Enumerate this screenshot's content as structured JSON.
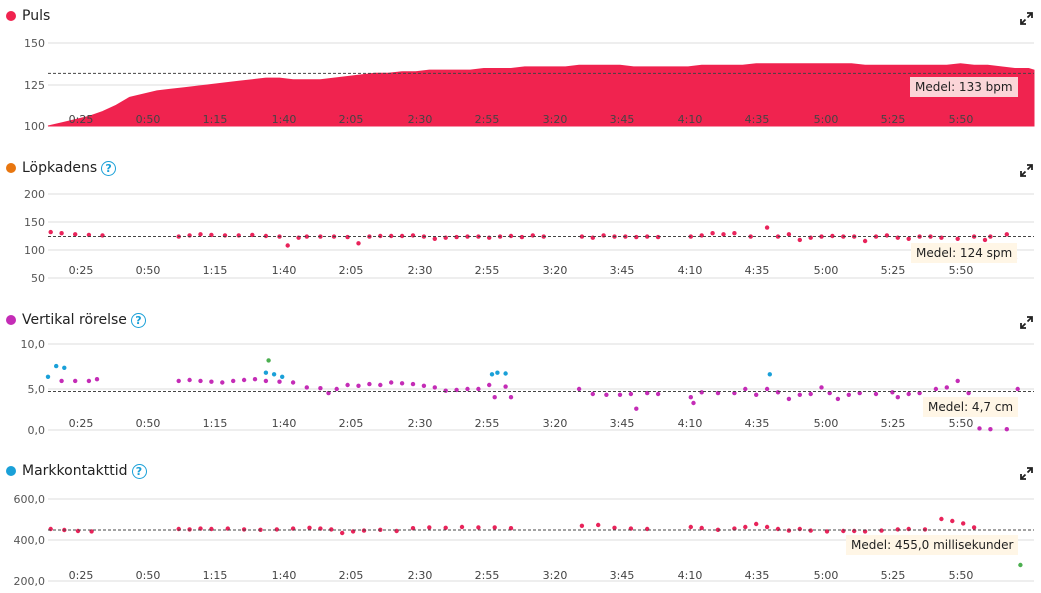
{
  "x_ticks": [
    "0:25",
    "0:50",
    "1:15",
    "1:40",
    "2:05",
    "2:30",
    "2:55",
    "3:20",
    "3:45",
    "4:10",
    "4:35",
    "5:00",
    "5:25",
    "5:50"
  ],
  "charts": {
    "puls": {
      "title": "Puls",
      "color": "#f0234f",
      "avg_label": "Medel: 133 bpm",
      "avg_value": 133,
      "y_ticks": [
        "150",
        "125",
        "100"
      ]
    },
    "kadens": {
      "title": "Löpkadens",
      "color": "#e8760f",
      "avg_label": "Medel: 124 spm",
      "avg_value": 124,
      "y_ticks": [
        "200",
        "150",
        "100",
        "50"
      ]
    },
    "vertikal": {
      "title": "Vertikal rörelse",
      "color": "#c42cb6",
      "avg_label": "Medel: 4,7 cm",
      "avg_value": 4.7,
      "y_ticks": [
        "10,0",
        "5,0",
        "0,0"
      ]
    },
    "mark": {
      "title": "Markkontakttid",
      "color": "#1aa0d8",
      "avg_label": "Medel: 455,0 millisekunder",
      "avg_value": 455.0,
      "y_ticks": [
        "600,0",
        "400,0",
        "200,0"
      ]
    }
  },
  "help_glyph": "?",
  "icons": {
    "expand": "expand-icon",
    "help": "question-circle-icon"
  },
  "chart_data": [
    {
      "type": "area",
      "title": "Puls",
      "xlabel": "",
      "ylabel": "",
      "ylim": [
        100,
        152
      ],
      "x": [
        0,
        5,
        10,
        15,
        20,
        25,
        30,
        40,
        45,
        50,
        55,
        60,
        65,
        70,
        75,
        80,
        85,
        90,
        95,
        100,
        105,
        110,
        115,
        120,
        125,
        130,
        135,
        140,
        145,
        150,
        155,
        160,
        165,
        170,
        175,
        180,
        185,
        190,
        195,
        200,
        205,
        210,
        215,
        220,
        225,
        230,
        235,
        240,
        245,
        250,
        255,
        260,
        265,
        270,
        275,
        280,
        285,
        290,
        295,
        300,
        305,
        310,
        315,
        320,
        325,
        330,
        335,
        340,
        345,
        350,
        355,
        360,
        362
      ],
      "values": [
        100,
        102,
        104,
        106,
        109,
        113,
        118,
        122,
        123,
        124,
        125,
        126,
        127,
        128,
        129,
        130,
        130,
        129,
        129,
        129,
        130,
        131,
        132,
        133,
        133,
        134,
        134,
        135,
        135,
        135,
        135,
        136,
        136,
        136,
        137,
        137,
        137,
        137,
        138,
        138,
        138,
        138,
        137,
        137,
        137,
        137,
        137,
        138,
        138,
        138,
        138,
        139,
        139,
        139,
        139,
        139,
        139,
        139,
        139,
        138,
        138,
        138,
        138,
        138,
        138,
        138,
        139,
        138,
        138,
        137,
        136,
        136,
        135
      ],
      "avg": 133
    },
    {
      "type": "scatter",
      "title": "Löpkadens",
      "ylim": [
        50,
        200
      ],
      "series": [
        {
          "values": [
            [
              1,
              132
            ],
            [
              5,
              130
            ],
            [
              10,
              128
            ],
            [
              15,
              127
            ],
            [
              20,
              126
            ],
            [
              48,
              124
            ],
            [
              52,
              126
            ],
            [
              56,
              128
            ],
            [
              60,
              127
            ],
            [
              65,
              126
            ],
            [
              70,
              126
            ],
            [
              75,
              127
            ],
            [
              80,
              125
            ],
            [
              85,
              124
            ],
            [
              88,
              108
            ],
            [
              92,
              122
            ],
            [
              95,
              124
            ],
            [
              100,
              124
            ],
            [
              105,
              124
            ],
            [
              110,
              123
            ],
            [
              114,
              112
            ],
            [
              118,
              124
            ],
            [
              122,
              125
            ],
            [
              126,
              125
            ],
            [
              130,
              125
            ],
            [
              134,
              126
            ],
            [
              138,
              124
            ],
            [
              142,
              120
            ],
            [
              146,
              122
            ],
            [
              150,
              123
            ],
            [
              154,
              124
            ],
            [
              158,
              124
            ],
            [
              162,
              122
            ],
            [
              166,
              124
            ],
            [
              170,
              125
            ],
            [
              174,
              123
            ],
            [
              178,
              126
            ],
            [
              182,
              124
            ],
            [
              196,
              124
            ],
            [
              200,
              122
            ],
            [
              204,
              126
            ],
            [
              208,
              124
            ],
            [
              212,
              124
            ],
            [
              216,
              123
            ],
            [
              220,
              124
            ],
            [
              224,
              123
            ],
            [
              236,
              124
            ],
            [
              240,
              126
            ],
            [
              244,
              130
            ],
            [
              248,
              128
            ],
            [
              252,
              130
            ],
            [
              258,
              124
            ],
            [
              264,
              140
            ],
            [
              268,
              124
            ],
            [
              272,
              128
            ],
            [
              276,
              118
            ],
            [
              280,
              122
            ],
            [
              284,
              124
            ],
            [
              288,
              125
            ],
            [
              292,
              124
            ],
            [
              296,
              124
            ],
            [
              300,
              116
            ],
            [
              304,
              124
            ],
            [
              308,
              126
            ],
            [
              312,
              122
            ],
            [
              316,
              120
            ],
            [
              320,
              124
            ],
            [
              324,
              124
            ],
            [
              328,
              122
            ],
            [
              334,
              120
            ],
            [
              340,
              124
            ],
            [
              344,
              118
            ],
            [
              346,
              124
            ],
            [
              352,
              128
            ],
            [
              355,
              85
            ]
          ]
        }
      ],
      "avg": 124
    },
    {
      "type": "scatter",
      "title": "Vertikal rörelse",
      "ylim": [
        0,
        10.5
      ],
      "series": [
        {
          "name": "",
          "values": [
            [
              5,
              6.0
            ],
            [
              10,
              6.0
            ],
            [
              15,
              6.0
            ],
            [
              18,
              6.2
            ],
            [
              48,
              6.0
            ],
            [
              52,
              6.1
            ],
            [
              56,
              6.0
            ],
            [
              60,
              5.9
            ],
            [
              64,
              5.8
            ],
            [
              68,
              6.0
            ],
            [
              72,
              6.1
            ],
            [
              76,
              6.2
            ],
            [
              80,
              6.0
            ],
            [
              85,
              5.9
            ],
            [
              90,
              5.8
            ],
            [
              95,
              5.2
            ],
            [
              100,
              5.1
            ],
            [
              103,
              4.5
            ],
            [
              106,
              5.0
            ],
            [
              110,
              5.5
            ],
            [
              114,
              5.4
            ],
            [
              118,
              5.6
            ],
            [
              122,
              5.5
            ],
            [
              126,
              5.8
            ],
            [
              130,
              5.7
            ],
            [
              134,
              5.6
            ],
            [
              138,
              5.4
            ],
            [
              142,
              5.2
            ],
            [
              146,
              4.8
            ],
            [
              150,
              4.9
            ],
            [
              154,
              5.0
            ],
            [
              158,
              5.0
            ],
            [
              162,
              5.5
            ],
            [
              164,
              4.0
            ],
            [
              168,
              5.3
            ],
            [
              170,
              4.0
            ],
            [
              195,
              5.0
            ],
            [
              200,
              4.4
            ],
            [
              205,
              4.3
            ],
            [
              210,
              4.3
            ],
            [
              214,
              4.4
            ],
            [
              216,
              2.6
            ],
            [
              220,
              4.5
            ],
            [
              224,
              4.4
            ],
            [
              236,
              4.0
            ],
            [
              237,
              3.3
            ],
            [
              240,
              4.6
            ],
            [
              246,
              4.5
            ],
            [
              252,
              4.5
            ],
            [
              256,
              5.0
            ],
            [
              260,
              4.3
            ],
            [
              264,
              5.0
            ],
            [
              268,
              4.6
            ],
            [
              272,
              3.8
            ],
            [
              276,
              4.3
            ],
            [
              280,
              4.4
            ],
            [
              284,
              5.2
            ],
            [
              287,
              4.5
            ],
            [
              290,
              3.8
            ],
            [
              294,
              4.3
            ],
            [
              298,
              4.5
            ],
            [
              304,
              4.4
            ],
            [
              310,
              4.6
            ],
            [
              312,
              4.0
            ],
            [
              316,
              4.4
            ],
            [
              320,
              4.5
            ],
            [
              326,
              5.0
            ],
            [
              330,
              5.2
            ],
            [
              334,
              6.0
            ],
            [
              338,
              4.5
            ],
            [
              342,
              0.2
            ],
            [
              346,
              0.1
            ],
            [
              352,
              0.1
            ],
            [
              356,
              5.0
            ]
          ]
        },
        {
          "name": "",
          "values": [
            [
              0,
              6.5
            ],
            [
              3,
              7.8
            ],
            [
              6,
              7.6
            ],
            [
              80,
              7.0
            ],
            [
              83,
              6.8
            ],
            [
              86,
              6.5
            ],
            [
              163,
              6.8
            ],
            [
              165,
              7.0
            ],
            [
              168,
              6.9
            ],
            [
              265,
              6.8
            ]
          ]
        },
        {
          "name": "",
          "values": [
            [
              81,
              8.5
            ]
          ]
        }
      ],
      "avg": 4.7
    },
    {
      "type": "scatter",
      "title": "Markkontakttid",
      "ylim": [
        200,
        610
      ],
      "series": [
        {
          "name": "",
          "values": [
            [
              1,
              460
            ],
            [
              6,
              455
            ],
            [
              11,
              450
            ],
            [
              16,
              448
            ],
            [
              48,
              460
            ],
            [
              52,
              458
            ],
            [
              56,
              462
            ],
            [
              60,
              460
            ],
            [
              66,
              462
            ],
            [
              72,
              458
            ],
            [
              78,
              456
            ],
            [
              84,
              458
            ],
            [
              90,
              462
            ],
            [
              96,
              466
            ],
            [
              100,
              462
            ],
            [
              104,
              458
            ],
            [
              108,
              440
            ],
            [
              112,
              448
            ],
            [
              116,
              452
            ],
            [
              122,
              456
            ],
            [
              128,
              450
            ],
            [
              134,
              464
            ],
            [
              140,
              468
            ],
            [
              146,
              466
            ],
            [
              152,
              470
            ],
            [
              158,
              468
            ],
            [
              164,
              468
            ],
            [
              170,
              464
            ],
            [
              196,
              476
            ],
            [
              202,
              480
            ],
            [
              208,
              466
            ],
            [
              214,
              462
            ],
            [
              220,
              460
            ],
            [
              236,
              470
            ],
            [
              240,
              465
            ],
            [
              246,
              456
            ],
            [
              252,
              462
            ],
            [
              256,
              470
            ],
            [
              260,
              485
            ],
            [
              264,
              470
            ],
            [
              268,
              460
            ],
            [
              272,
              452
            ],
            [
              276,
              460
            ],
            [
              280,
              452
            ],
            [
              286,
              448
            ],
            [
              292,
              450
            ],
            [
              296,
              450
            ],
            [
              300,
              448
            ],
            [
              306,
              452
            ],
            [
              312,
              458
            ],
            [
              316,
              460
            ],
            [
              322,
              458
            ],
            [
              328,
              510
            ],
            [
              332,
              500
            ],
            [
              336,
              488
            ],
            [
              340,
              468
            ]
          ]
        },
        {
          "name": "",
          "values": [
            [
              357,
              280
            ]
          ]
        }
      ],
      "avg": 455
    }
  ]
}
